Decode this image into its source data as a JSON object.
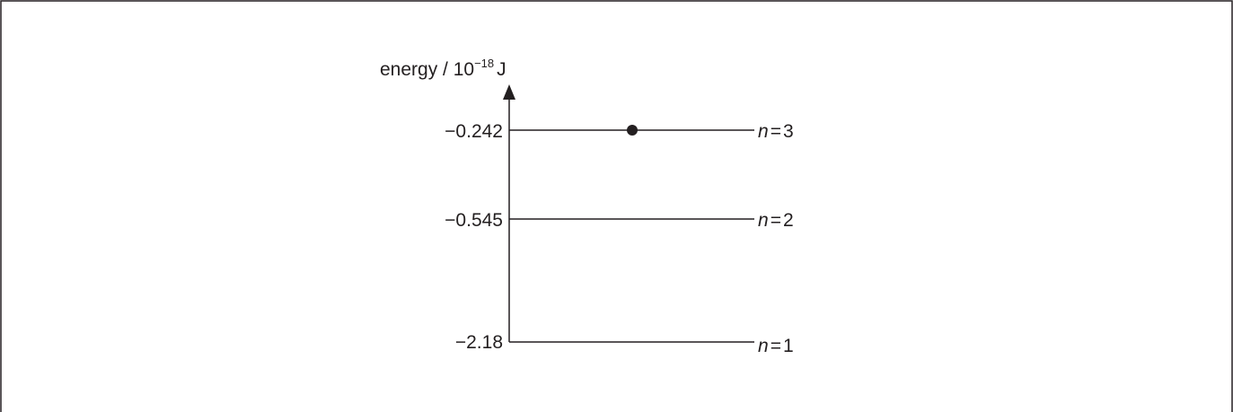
{
  "axis": {
    "label_prefix": "energy / 10",
    "label_exponent": "−18",
    "label_unit": "J"
  },
  "levels": [
    {
      "value_label": "−0.242",
      "n_symbol": "n",
      "n_eq": "=",
      "n_value": "3",
      "energy": -0.242,
      "has_electron": true
    },
    {
      "value_label": "−0.545",
      "n_symbol": "n",
      "n_eq": "=",
      "n_value": "2",
      "energy": -0.545,
      "has_electron": false
    },
    {
      "value_label": "−2.18",
      "n_symbol": "n",
      "n_eq": "=",
      "n_value": "1",
      "energy": -2.18,
      "has_electron": false
    }
  ],
  "colors": {
    "line": "#231f20",
    "border": "#231f20"
  }
}
